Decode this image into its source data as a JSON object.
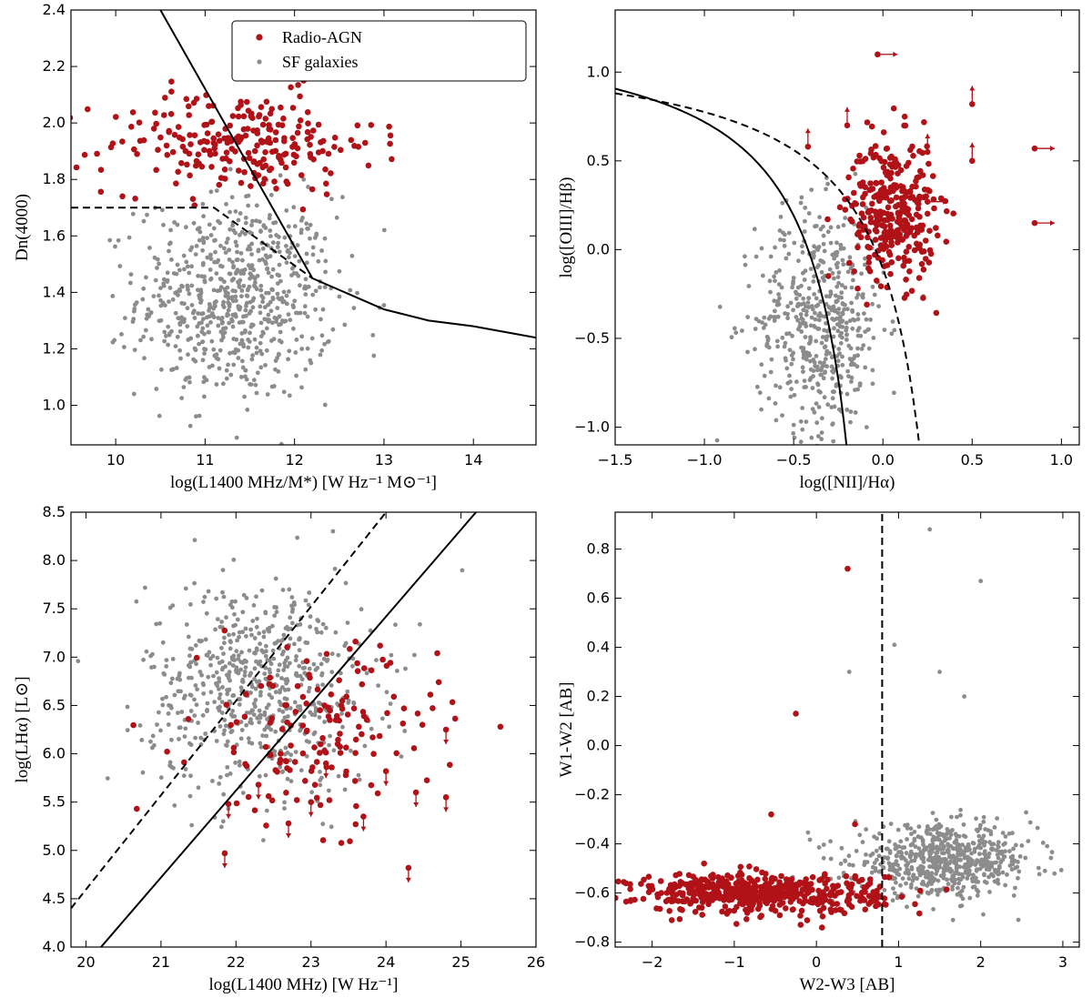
{
  "colors": {
    "agn": "#b01217",
    "sf": "#8c8c8c",
    "line": "#000000"
  },
  "chart_data": [
    {
      "id": "dn4000",
      "type": "scatter",
      "xlabel": "log(L1400 MHz/M*) [W Hz⁻¹ M⊙⁻¹]",
      "ylabel": "Dn(4000)",
      "xlim": [
        9.5,
        14.7
      ],
      "ylim": [
        0.86,
        2.4
      ],
      "xticks": [
        10,
        11,
        12,
        13,
        14
      ],
      "yticks": [
        1.0,
        1.2,
        1.4,
        1.6,
        1.8,
        2.0,
        2.2,
        2.4
      ],
      "legend": {
        "position": "top-right",
        "entries": [
          "Radio-AGN",
          "SF galaxies"
        ]
      },
      "series": [
        {
          "name": "Radio-AGN",
          "color_key": "agn",
          "cloud": {
            "cx": 11.4,
            "cy": 1.93,
            "sx": 0.75,
            "sy": 0.09,
            "n": 240
          }
        },
        {
          "name": "SF galaxies",
          "color_key": "sf",
          "cloud": {
            "cx": 11.35,
            "cy": 1.38,
            "sx": 0.55,
            "sy": 0.18,
            "n": 700
          }
        }
      ],
      "lines": [
        {
          "style": "solid",
          "points": [
            [
              10.5,
              2.4
            ],
            [
              12.2,
              1.45
            ],
            [
              13.0,
              1.34
            ],
            [
              13.5,
              1.3
            ],
            [
              14.0,
              1.28
            ],
            [
              14.7,
              1.24
            ]
          ]
        },
        {
          "style": "dashed",
          "points": [
            [
              9.5,
              1.7
            ],
            [
              11.1,
              1.7
            ],
            [
              12.2,
              1.45
            ]
          ]
        }
      ]
    },
    {
      "id": "bpt",
      "type": "scatter",
      "xlabel": "log([NII]/Hα)",
      "ylabel": "log([OIII]/Hβ)",
      "xlim": [
        -1.5,
        1.1
      ],
      "ylim": [
        -1.1,
        1.35
      ],
      "xticks": [
        -1.5,
        -1.0,
        -0.5,
        0.0,
        0.5,
        1.0
      ],
      "yticks": [
        -1.0,
        -0.5,
        0.0,
        0.5,
        1.0
      ],
      "series": [
        {
          "name": "Radio-AGN",
          "color_key": "agn",
          "cloud": {
            "cx": 0.05,
            "cy": 0.22,
            "sx": 0.12,
            "sy": 0.2,
            "n": 330
          }
        },
        {
          "name": "SF galaxies",
          "color_key": "sf",
          "cloud": {
            "cx": -0.35,
            "cy": -0.4,
            "sx": 0.18,
            "sy": 0.32,
            "n": 520
          }
        }
      ],
      "arrows": [
        {
          "x": -0.03,
          "y": 1.1,
          "dir": "right"
        },
        {
          "x": 0.85,
          "y": 0.57,
          "dir": "right"
        },
        {
          "x": 0.85,
          "y": 0.15,
          "dir": "right"
        },
        {
          "x": 0.25,
          "y": 0.55,
          "dir": "up"
        },
        {
          "x": 0.5,
          "y": 0.82,
          "dir": "up"
        },
        {
          "x": 0.5,
          "y": 0.5,
          "dir": "up"
        },
        {
          "x": -0.2,
          "y": 0.7,
          "dir": "up"
        },
        {
          "x": 0.25,
          "y": 0.27,
          "dir": "right"
        },
        {
          "x": -0.42,
          "y": 0.58,
          "dir": "up"
        }
      ],
      "lines": [
        {
          "style": "solid",
          "func": "kauffmann"
        },
        {
          "style": "dashed",
          "func": "kewley"
        }
      ]
    },
    {
      "id": "halpha",
      "type": "scatter",
      "xlabel": "log(L1400 MHz) [W Hz⁻¹]",
      "ylabel": "log(LHα) [L⊙]",
      "xlim": [
        19.8,
        26
      ],
      "ylim": [
        4.0,
        8.5
      ],
      "xticks": [
        20,
        21,
        22,
        23,
        24,
        25,
        26
      ],
      "yticks": [
        4.0,
        4.5,
        5.0,
        5.5,
        6.0,
        6.5,
        7.0,
        7.5,
        8.0,
        8.5
      ],
      "series": [
        {
          "name": "Radio-AGN",
          "color_key": "agn",
          "cloud": {
            "cx": 23.1,
            "cy": 6.2,
            "sx": 0.8,
            "sy": 0.45,
            "n": 150
          }
        },
        {
          "name": "SF galaxies",
          "color_key": "sf",
          "cloud": {
            "cx": 22.3,
            "cy": 6.7,
            "sx": 0.75,
            "sy": 0.55,
            "n": 650
          }
        }
      ],
      "arrows": [
        {
          "x": 21.85,
          "y": 4.97,
          "dir": "down"
        },
        {
          "x": 24.3,
          "y": 4.82,
          "dir": "down"
        },
        {
          "x": 22.7,
          "y": 5.28,
          "dir": "down"
        },
        {
          "x": 23.7,
          "y": 5.35,
          "dir": "down"
        },
        {
          "x": 24.4,
          "y": 5.6,
          "dir": "down"
        },
        {
          "x": 24.8,
          "y": 5.55,
          "dir": "down"
        },
        {
          "x": 22.3,
          "y": 5.68,
          "dir": "down"
        },
        {
          "x": 23.0,
          "y": 5.5,
          "dir": "down"
        },
        {
          "x": 24.0,
          "y": 5.82,
          "dir": "down"
        },
        {
          "x": 23.2,
          "y": 5.9,
          "dir": "down"
        },
        {
          "x": 21.9,
          "y": 5.48,
          "dir": "down"
        },
        {
          "x": 24.8,
          "y": 6.25,
          "dir": "down"
        }
      ],
      "lines": [
        {
          "style": "solid",
          "points": [
            [
              20.2,
              4.0
            ],
            [
              25.2,
              8.5
            ]
          ]
        },
        {
          "style": "dashed",
          "points": [
            [
              19.8,
              4.4
            ],
            [
              24.0,
              8.5
            ]
          ]
        }
      ]
    },
    {
      "id": "wise",
      "type": "scatter",
      "xlabel": "W2-W3 [AB]",
      "ylabel": "W1-W2 [AB]",
      "xlim": [
        -2.45,
        3.2
      ],
      "ylim": [
        -0.82,
        0.95
      ],
      "xticks": [
        -2,
        -1,
        0,
        1,
        2,
        3
      ],
      "yticks": [
        -0.8,
        -0.6,
        -0.4,
        -0.2,
        0.0,
        0.2,
        0.4,
        0.6,
        0.8
      ],
      "series": [
        {
          "name": "Radio-AGN",
          "color_key": "agn",
          "cloud": {
            "cx": -0.7,
            "cy": -0.6,
            "sx": 0.75,
            "sy": 0.04,
            "n": 520
          }
        },
        {
          "name": "SF galaxies",
          "color_key": "sf",
          "cloud": {
            "cx": 1.55,
            "cy": -0.47,
            "sx": 0.55,
            "sy": 0.07,
            "n": 650
          }
        }
      ],
      "extra_points": [
        {
          "x": 0.38,
          "y": 0.72,
          "color_key": "agn"
        },
        {
          "x": -0.25,
          "y": 0.13,
          "color_key": "agn"
        },
        {
          "x": 0.47,
          "y": -0.32,
          "color_key": "agn"
        },
        {
          "x": -0.55,
          "y": -0.28,
          "color_key": "agn"
        },
        {
          "x": 1.38,
          "y": 0.88,
          "color_key": "sf"
        },
        {
          "x": 2.0,
          "y": 0.67,
          "color_key": "sf"
        },
        {
          "x": 0.95,
          "y": 0.41,
          "color_key": "sf"
        },
        {
          "x": 1.5,
          "y": 0.3,
          "color_key": "sf"
        },
        {
          "x": 1.8,
          "y": 0.2,
          "color_key": "sf"
        },
        {
          "x": 0.4,
          "y": 0.3,
          "color_key": "sf"
        }
      ],
      "lines": [
        {
          "style": "dashed",
          "points": [
            [
              0.8,
              -0.82
            ],
            [
              0.8,
              0.95
            ]
          ]
        }
      ]
    }
  ]
}
